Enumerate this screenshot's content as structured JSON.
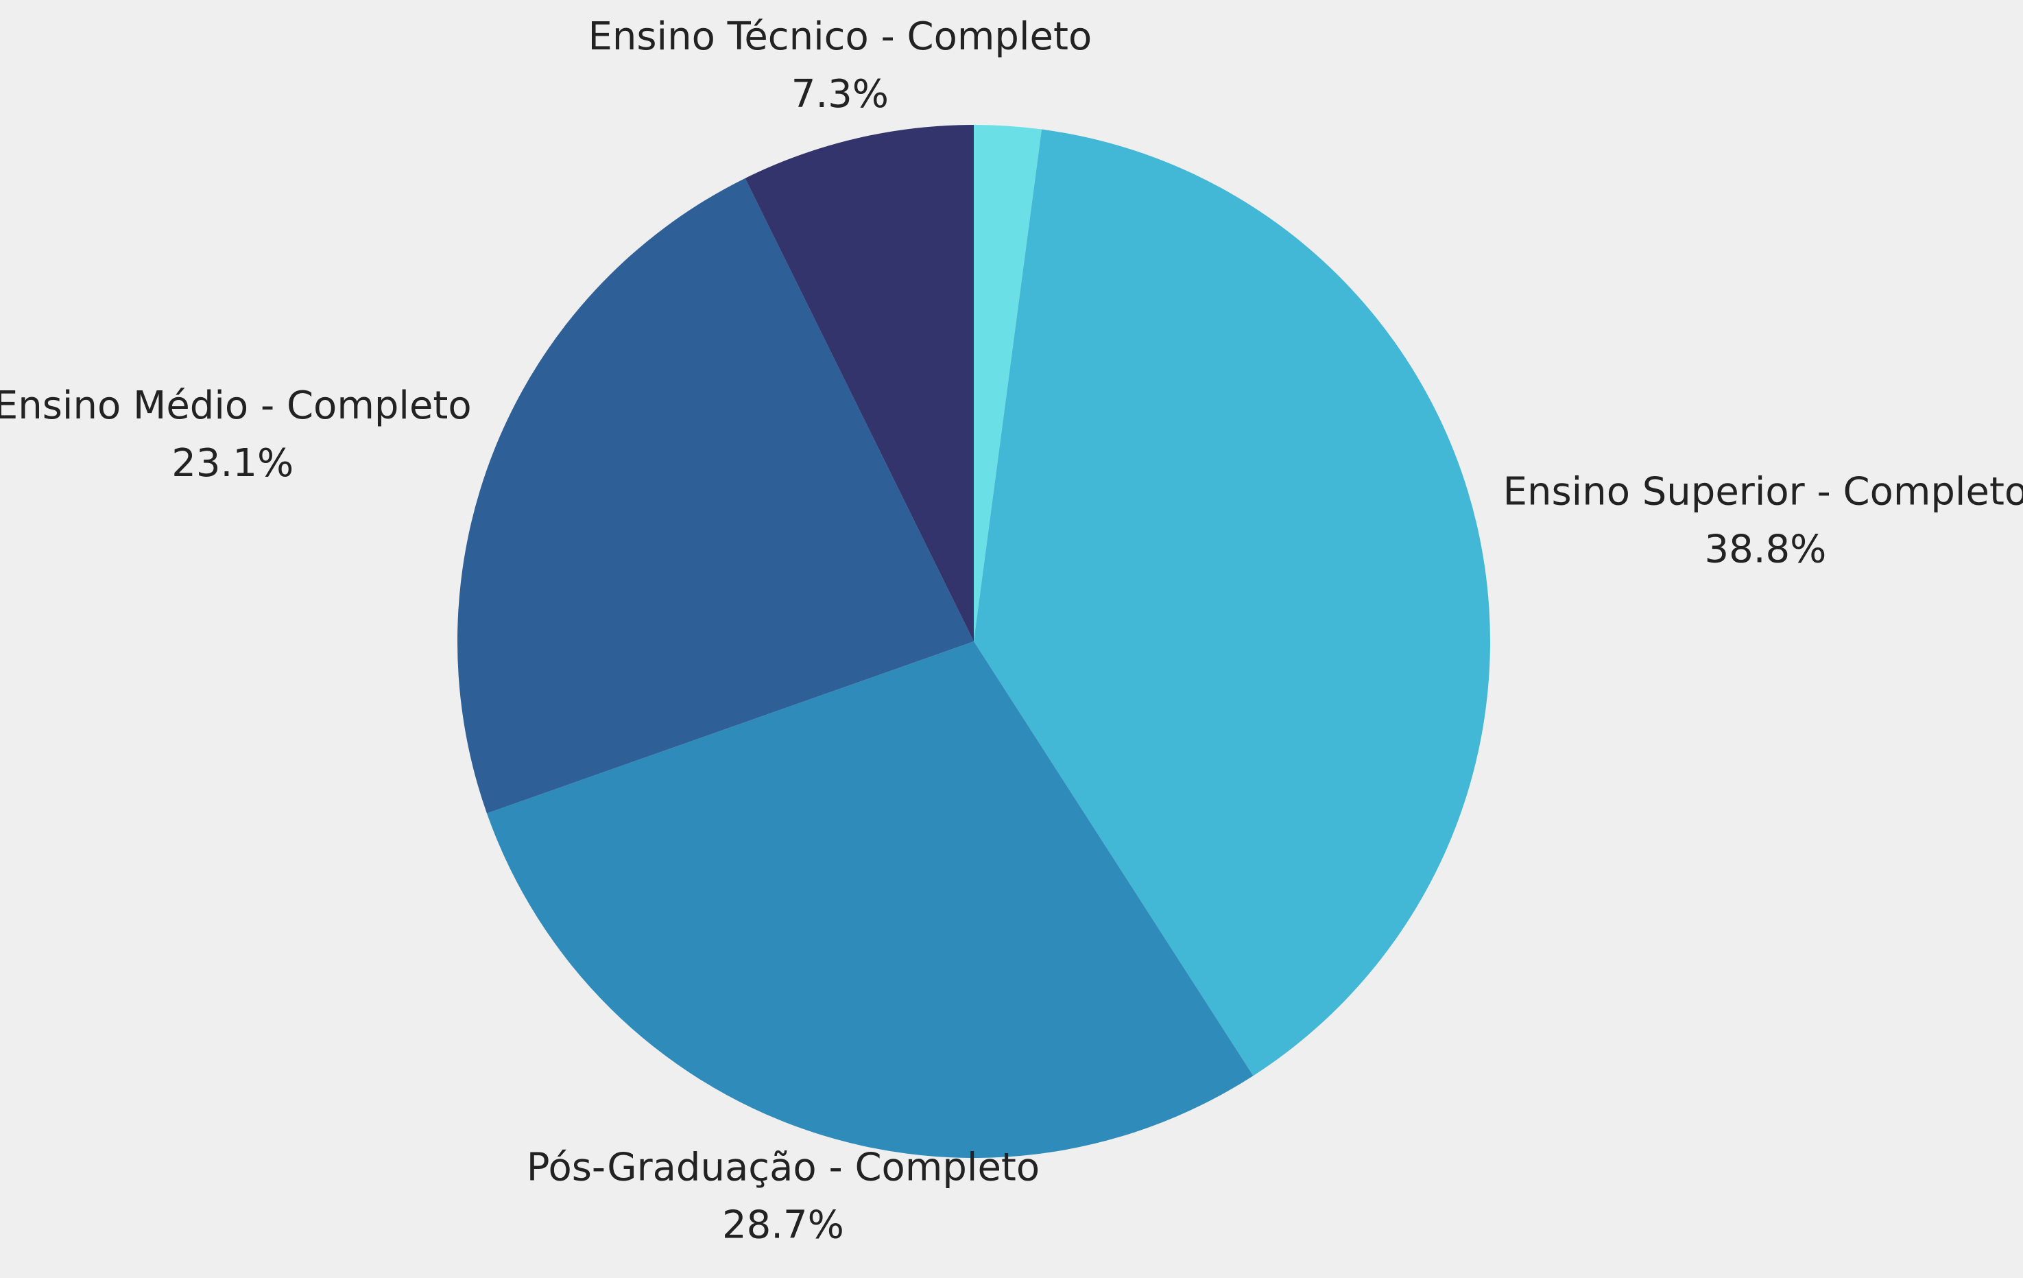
{
  "chart_data": {
    "type": "pie",
    "categories": [
      null,
      "Ensino Superior - Completo",
      "Pós-Graduação - Completo",
      "Ensino Médio - Completo",
      "Ensino Técnico - Completo"
    ],
    "values": [
      2.1,
      38.8,
      28.7,
      23.1,
      7.3
    ],
    "value_labels": [
      null,
      "38.8%",
      "28.7%",
      "23.1%",
      "7.3%"
    ],
    "colors": [
      "#6ae0e6",
      "#42b7d6",
      "#2e8bba",
      "#2e5f96",
      "#32346b"
    ]
  }
}
